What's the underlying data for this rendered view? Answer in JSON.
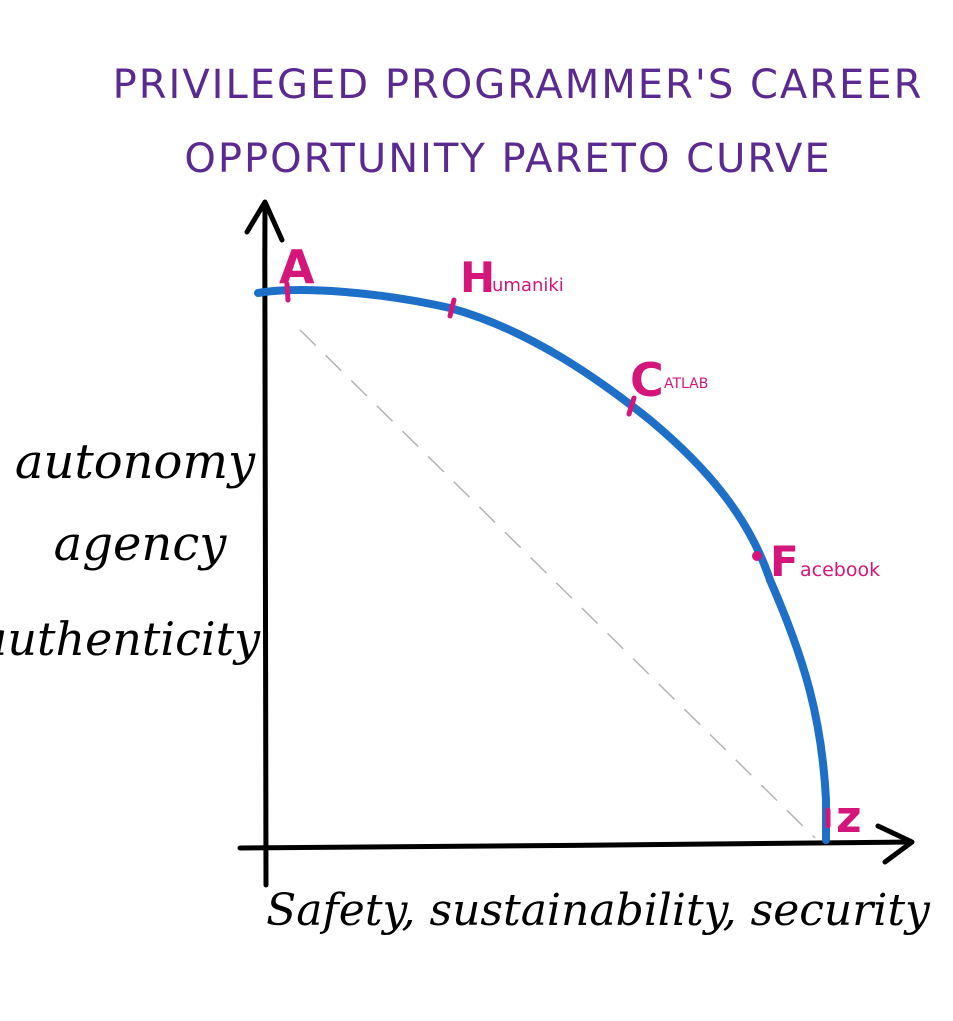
{
  "title": {
    "line1": "PRIVILEGED PROGRAMMER'S CAREER",
    "line2": "OPPORTUNITY PARETO CURVE"
  },
  "y_axis_label": {
    "line1": "autonomy",
    "line2": "agency",
    "line3": "authenticity"
  },
  "x_axis_label": "Safety, sustainability, security",
  "points": [
    {
      "id": "a",
      "letter": "A",
      "text": ""
    },
    {
      "id": "h",
      "letter": "H",
      "text": "umaniki"
    },
    {
      "id": "c",
      "letter": "C",
      "text": "ATLAB"
    },
    {
      "id": "f",
      "letter": "F",
      "text": "acebook"
    },
    {
      "id": "z",
      "letter": "z",
      "text": ""
    }
  ],
  "colors": {
    "title": "#5b2a91",
    "curve": "#1e6fc8",
    "points": "#d4157a",
    "axes": "#000000",
    "diagonal": "#b4b4b4"
  }
}
